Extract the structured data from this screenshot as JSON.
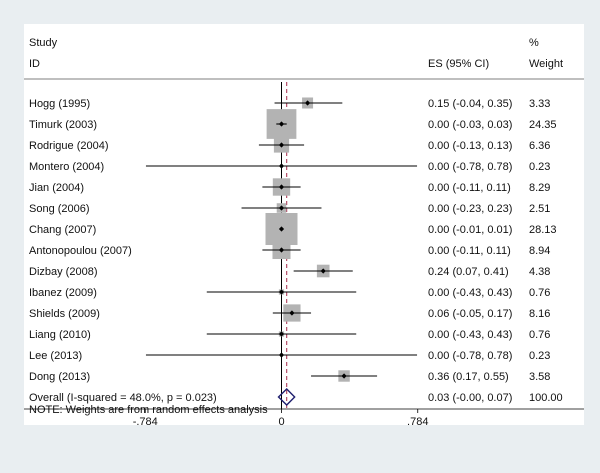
{
  "chart_data": {
    "type": "forest",
    "header": {
      "study_line1": "Study",
      "study_line2": "ID",
      "es_label": "ES (95% CI)",
      "weight_line1": "%",
      "weight_line2": "Weight"
    },
    "x_ticks": [
      {
        "value": -0.784,
        "label": "-.784"
      },
      {
        "value": 0,
        "label": "0"
      },
      {
        "value": 0.784,
        "label": ".784"
      }
    ],
    "xlim": [
      -0.82,
      0.82
    ],
    "null_line": 0,
    "overall_line": 0.03,
    "studies": [
      {
        "id": "Hogg (1995)",
        "es": 0.15,
        "lo": -0.04,
        "hi": 0.35,
        "es_text": "0.15 (-0.04, 0.35)",
        "weight": 3.33,
        "weight_text": "3.33"
      },
      {
        "id": "Timurk (2003)",
        "es": 0.0,
        "lo": -0.03,
        "hi": 0.03,
        "es_text": "0.00 (-0.03, 0.03)",
        "weight": 24.35,
        "weight_text": "24.35"
      },
      {
        "id": "Rodrigue (2004)",
        "es": 0.0,
        "lo": -0.13,
        "hi": 0.13,
        "es_text": "0.00 (-0.13, 0.13)",
        "weight": 6.36,
        "weight_text": "6.36"
      },
      {
        "id": "Montero (2004)",
        "es": 0.0,
        "lo": -0.78,
        "hi": 0.78,
        "es_text": "0.00 (-0.78, 0.78)",
        "weight": 0.23,
        "weight_text": "0.23"
      },
      {
        "id": "Jian (2004)",
        "es": 0.0,
        "lo": -0.11,
        "hi": 0.11,
        "es_text": "0.00 (-0.11, 0.11)",
        "weight": 8.29,
        "weight_text": "8.29"
      },
      {
        "id": "Song (2006)",
        "es": 0.0,
        "lo": -0.23,
        "hi": 0.23,
        "es_text": "0.00 (-0.23, 0.23)",
        "weight": 2.51,
        "weight_text": "2.51"
      },
      {
        "id": "Chang (2007)",
        "es": 0.0,
        "lo": -0.01,
        "hi": 0.01,
        "es_text": "0.00 (-0.01, 0.01)",
        "weight": 28.13,
        "weight_text": "28.13"
      },
      {
        "id": "Antonopoulou (2007)",
        "es": 0.0,
        "lo": -0.11,
        "hi": 0.11,
        "es_text": "0.00 (-0.11, 0.11)",
        "weight": 8.94,
        "weight_text": "8.94"
      },
      {
        "id": "Dizbay (2008)",
        "es": 0.24,
        "lo": 0.07,
        "hi": 0.41,
        "es_text": "0.24 (0.07, 0.41)",
        "weight": 4.38,
        "weight_text": "4.38"
      },
      {
        "id": "Ibanez (2009)",
        "es": 0.0,
        "lo": -0.43,
        "hi": 0.43,
        "es_text": "0.00 (-0.43, 0.43)",
        "weight": 0.76,
        "weight_text": "0.76"
      },
      {
        "id": "Shields (2009)",
        "es": 0.06,
        "lo": -0.05,
        "hi": 0.17,
        "es_text": "0.06 (-0.05, 0.17)",
        "weight": 8.16,
        "weight_text": "8.16"
      },
      {
        "id": "Liang (2010)",
        "es": 0.0,
        "lo": -0.43,
        "hi": 0.43,
        "es_text": "0.00 (-0.43, 0.43)",
        "weight": 0.76,
        "weight_text": "0.76"
      },
      {
        "id": "Lee (2013)",
        "es": 0.0,
        "lo": -0.78,
        "hi": 0.78,
        "es_text": "0.00 (-0.78, 0.78)",
        "weight": 0.23,
        "weight_text": "0.23"
      },
      {
        "id": "Dong (2013)",
        "es": 0.36,
        "lo": 0.17,
        "hi": 0.55,
        "es_text": "0.36 (0.17, 0.55)",
        "weight": 3.58,
        "weight_text": "3.58"
      }
    ],
    "overall": {
      "label": "Overall  (I-squared = 48.0%, p = 0.023)",
      "es": 0.03,
      "lo": -0.0,
      "hi": 0.07,
      "es_text": "0.03 (-0.00, 0.07)",
      "weight_text": "100.00"
    },
    "note": "NOTE: Weights are from random effects analysis",
    "colors": {
      "background": "#e9eef1",
      "plot_background": "#ffffff",
      "weight_box": "#b3b3b3",
      "overall_line": "#a52a4a",
      "diamond": "#1f1f6e",
      "axis": "#000000"
    }
  }
}
